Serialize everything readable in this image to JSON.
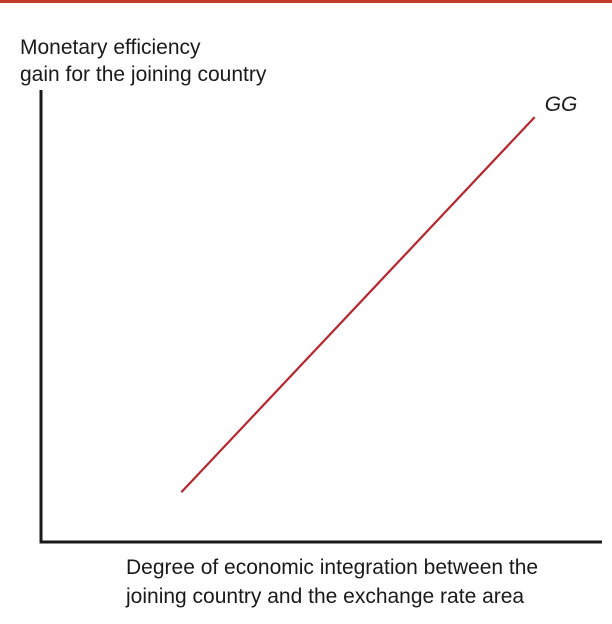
{
  "colors": {
    "accent": "#c0392b",
    "axis": "#1a1a1a",
    "curve": "#b5272d"
  },
  "chart_data": {
    "type": "line",
    "title": "",
    "ylabel_lines": [
      "Monetary efficiency",
      "gain for the joining country"
    ],
    "xlabel_lines": [
      "Degree of economic integration between the",
      "joining country and the exchange rate area"
    ],
    "xlim": [
      0,
      10
    ],
    "ylim": [
      0,
      10
    ],
    "ticks": false,
    "grid": false,
    "series": [
      {
        "name": "GG",
        "x": [
          2.5,
          8.8
        ],
        "y": [
          1.1,
          9.4
        ]
      }
    ]
  }
}
